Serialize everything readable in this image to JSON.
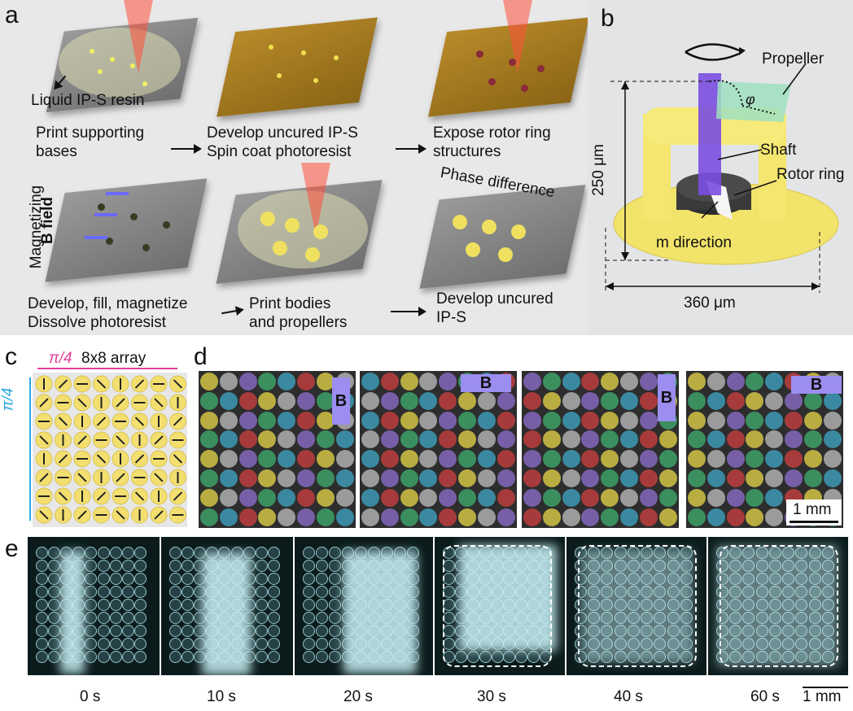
{
  "panel_a": {
    "label": "a",
    "callout_resin": "Liquid IP-S resin",
    "steps": [
      {
        "text": "Print supporting\nbases"
      },
      {
        "text": "Develop uncured IP-S\nSpin coat photoresist"
      },
      {
        "text": "Expose rotor ring\nstructures"
      },
      {
        "text": "Develop, fill, magnetize\nDissolve photoresist"
      },
      {
        "text": "Print bodies\nand propellers"
      },
      {
        "text": "Develop uncured\nIP-S"
      }
    ],
    "magnetizing_label": "Magnetizing",
    "field_label": "B field",
    "phase_label": "Phase difference"
  },
  "panel_b": {
    "label": "b",
    "propeller": "Propeller",
    "phi": "φ",
    "shaft": "Shaft",
    "rotor_ring": "Rotor ring",
    "m_direction": "m direction",
    "height": "250 μm",
    "width": "360 μm"
  },
  "panel_c": {
    "label": "c",
    "top_annot": "π/4",
    "title": "8x8 array",
    "side_annot": "π/4",
    "accent_pink": "#e0409a",
    "accent_cyan": "#2aa8e0"
  },
  "panel_d": {
    "label": "d",
    "field_label": "B",
    "scale": "1 mm",
    "field_directions": [
      "up",
      "left",
      "down",
      "right"
    ]
  },
  "panel_e": {
    "label": "e",
    "times": [
      "0 s",
      "10 s",
      "20 s",
      "30 s",
      "40 s",
      "60 s"
    ],
    "scale": "1 mm"
  }
}
